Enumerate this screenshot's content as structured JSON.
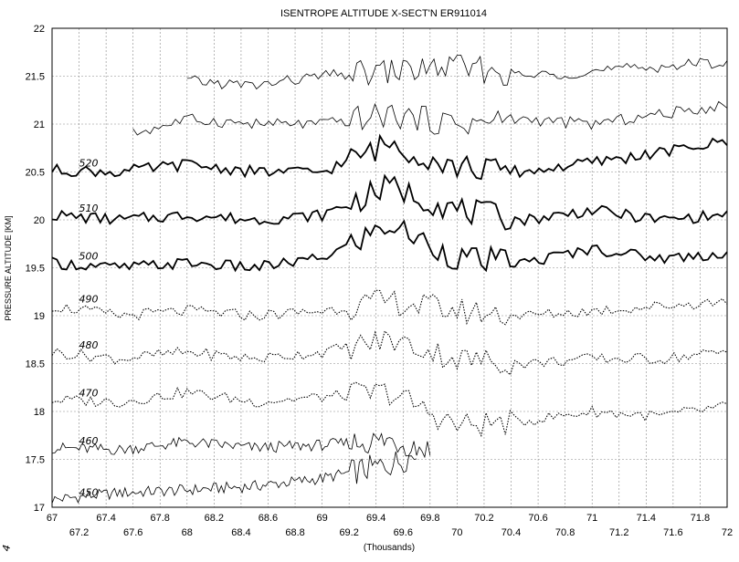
{
  "chart_data": {
    "type": "line",
    "title": "ISENTROPE ALTITUDE X-SECT'N ER911014",
    "xlabel": "(Thousands)",
    "ylabel": "PRESSURE ALTITUDE [KM]",
    "xlim": [
      67,
      72
    ],
    "ylim": [
      17,
      22
    ],
    "grid": true,
    "x_ticks_major": [
      "67",
      "67.4",
      "67.8",
      "68.2",
      "68.6",
      "69",
      "69.4",
      "69.8",
      "70.2",
      "70.6",
      "71",
      "71.4",
      "71.8"
    ],
    "x_ticks_minor": [
      "67.2",
      "67.6",
      "68",
      "68.4",
      "68.8",
      "69.2",
      "69.6",
      "70",
      "70.4",
      "70.8",
      "71.2",
      "71.6",
      "72"
    ],
    "y_ticks": [
      "17",
      "17.5",
      "18",
      "18.5",
      "19",
      "19.5",
      "20",
      "20.5",
      "21",
      "21.5",
      "22"
    ],
    "series": [
      {
        "name": "450",
        "style": "thin",
        "x": [
          67.0,
          67.5,
          68.0,
          68.5,
          69.0,
          69.5,
          69.7
        ],
        "y": [
          17.08,
          17.15,
          17.18,
          17.22,
          17.3,
          17.45,
          17.55
        ]
      },
      {
        "name": "460",
        "style": "thin",
        "x": [
          67.0,
          67.5,
          68.0,
          68.5,
          69.0,
          69.5,
          69.8
        ],
        "y": [
          17.62,
          17.6,
          17.68,
          17.62,
          17.65,
          17.7,
          17.6
        ]
      },
      {
        "name": "470",
        "style": "dotted",
        "x": [
          67.0,
          67.5,
          68.0,
          68.5,
          69.0,
          69.5,
          70.0,
          70.5,
          71.0,
          71.5,
          72.0
        ],
        "y": [
          18.12,
          18.1,
          18.2,
          18.1,
          18.15,
          18.2,
          17.85,
          17.9,
          18.0,
          17.95,
          18.05
        ]
      },
      {
        "name": "480",
        "style": "dotted",
        "x": [
          67.0,
          67.5,
          68.0,
          68.5,
          69.0,
          69.5,
          70.0,
          70.5,
          71.0,
          71.5,
          72.0
        ],
        "y": [
          18.62,
          18.55,
          18.62,
          18.55,
          18.62,
          18.75,
          18.55,
          18.5,
          18.55,
          18.55,
          18.62
        ]
      },
      {
        "name": "490",
        "style": "dotted",
        "x": [
          67.0,
          67.5,
          68.0,
          68.5,
          69.0,
          69.5,
          70.0,
          70.5,
          71.0,
          71.5,
          72.0
        ],
        "y": [
          19.1,
          19.0,
          19.05,
          19.0,
          19.05,
          19.15,
          19.05,
          19.0,
          19.05,
          19.1,
          19.15
        ]
      },
      {
        "name": "500",
        "style": "bold",
        "x": [
          67.0,
          67.5,
          68.0,
          68.5,
          69.0,
          69.5,
          70.0,
          70.5,
          71.0,
          71.5,
          72.0
        ],
        "y": [
          19.55,
          19.5,
          19.55,
          19.5,
          19.6,
          19.95,
          19.6,
          19.55,
          19.7,
          19.6,
          19.65
        ]
      },
      {
        "name": "510",
        "style": "bold",
        "x": [
          67.0,
          67.5,
          68.0,
          68.5,
          69.0,
          69.5,
          70.0,
          70.5,
          71.0,
          71.5,
          72.0
        ],
        "y": [
          20.05,
          20.0,
          20.05,
          20.0,
          20.05,
          20.35,
          20.1,
          20.0,
          20.1,
          20.0,
          20.05
        ]
      },
      {
        "name": "520",
        "style": "bold",
        "x": [
          67.0,
          67.5,
          68.0,
          68.5,
          69.0,
          69.5,
          70.0,
          70.5,
          71.0,
          71.5,
          72.0
        ],
        "y": [
          20.52,
          20.5,
          20.58,
          20.5,
          20.5,
          20.8,
          20.55,
          20.5,
          20.6,
          20.7,
          20.82
        ]
      },
      {
        "style": "thin",
        "x": [
          67.6,
          68.0,
          68.5,
          69.0,
          69.5,
          70.0,
          70.5,
          71.0,
          71.5,
          72.0
        ],
        "y": [
          20.9,
          21.05,
          21.0,
          21.0,
          21.1,
          21.0,
          21.05,
          21.0,
          21.1,
          21.2
        ]
      },
      {
        "style": "thin",
        "x": [
          68.0,
          68.5,
          69.0,
          69.5,
          70.0,
          70.5,
          71.0,
          71.5,
          72.0
        ],
        "y": [
          21.45,
          21.4,
          21.5,
          21.55,
          21.6,
          21.5,
          21.55,
          21.6,
          21.65
        ]
      }
    ],
    "curve_labels": [
      "520",
      "510",
      "500",
      "490",
      "480",
      "470",
      "460",
      "450"
    ],
    "margin_mark": "4"
  }
}
